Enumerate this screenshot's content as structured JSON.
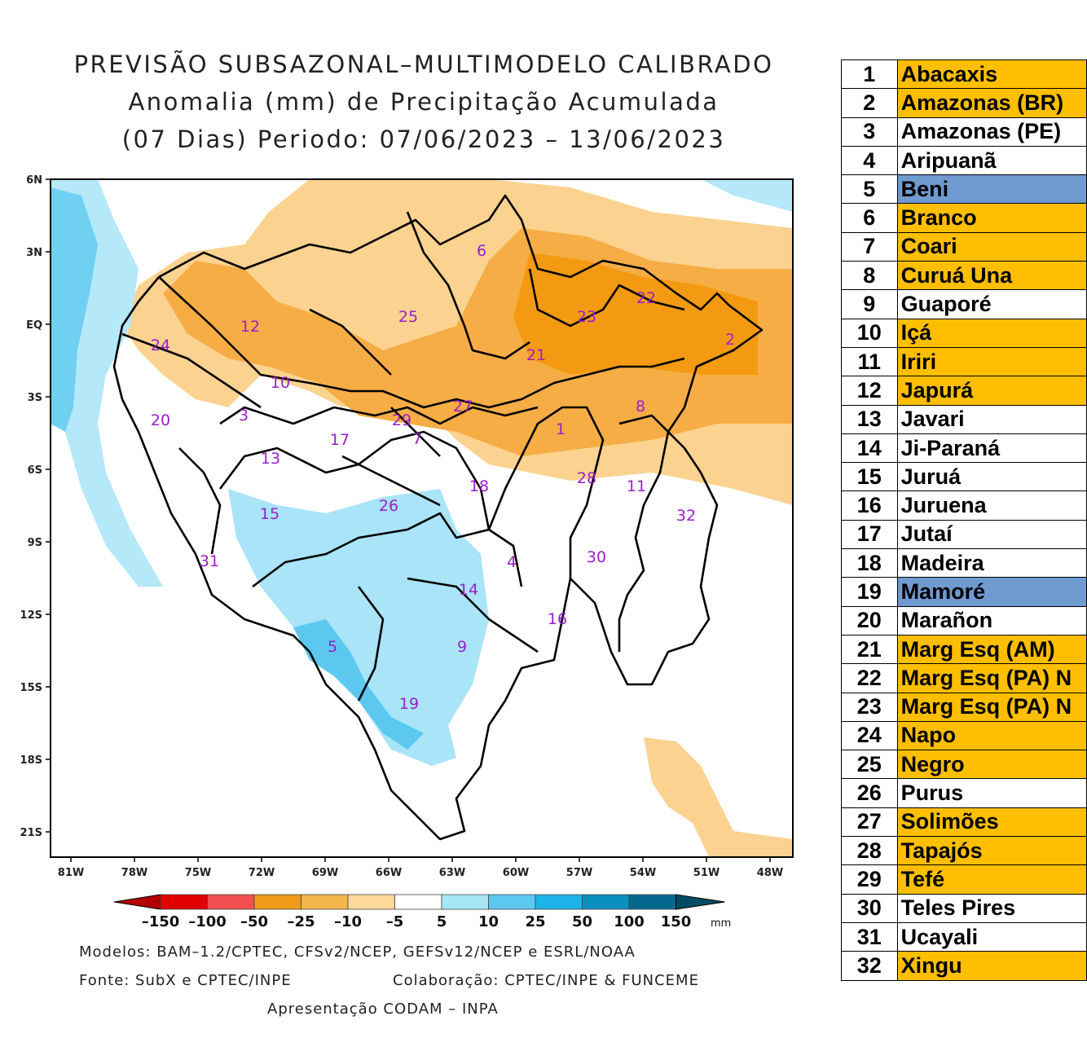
{
  "title": {
    "line1": "PREVISÃO SUBSAZONAL–MULTIMODELO CALIBRADO",
    "line2": "Anomalia (mm) de Precipitação Acumulada",
    "line3": "(07 Dias) Periodo: 07/06/2023 – 13/06/2023"
  },
  "map": {
    "lat_labels": [
      "6N",
      "3N",
      "EQ",
      "3S",
      "6S",
      "9S",
      "12S",
      "15S",
      "18S",
      "21S"
    ],
    "lon_labels": [
      "81W",
      "78W",
      "75W",
      "72W",
      "69W",
      "66W",
      "63W",
      "60W",
      "57W",
      "54W",
      "51W",
      "48W"
    ],
    "basin_labels": [
      "1",
      "2",
      "3",
      "4",
      "5",
      "6",
      "7",
      "8",
      "9",
      "10",
      "11",
      "12",
      "13",
      "14",
      "15",
      "16",
      "17",
      "18",
      "19",
      "20",
      "21",
      "22",
      "23",
      "24",
      "25",
      "26",
      "27",
      "28",
      "29",
      "30",
      "31",
      "32"
    ]
  },
  "colorbar": {
    "unit": "mm",
    "ticks": [
      "–150",
      "–100",
      "–50",
      "–25",
      "–10",
      "–5",
      "5",
      "10",
      "25",
      "50",
      "100",
      "150"
    ],
    "colors": [
      "#b30000",
      "#e00000",
      "#f25050",
      "#ef9b1a",
      "#f5b54d",
      "#fbd89a",
      "#ffffff",
      "#a7e6f7",
      "#5cc8f0",
      "#1bb3e8",
      "#0a8fbf",
      "#05698f",
      "#034b63"
    ]
  },
  "credits": {
    "models": "Modelos: BAM–1.2/CPTEC, CFSv2/NCEP, GEFSv12/NCEP e ESRL/NOAA",
    "source": "Fonte: SubX e CPTEC/INPE",
    "collab": "Colaboração: CPTEC/INPE & FUNCEME",
    "presentation": "Apresentação CODAM – INPA"
  },
  "legend": [
    {
      "num": "1",
      "name": "Abacaxis",
      "color": "#ffbf00"
    },
    {
      "num": "2",
      "name": "Amazonas (BR)",
      "color": "#ffbf00"
    },
    {
      "num": "3",
      "name": "Amazonas (PE)",
      "color": "#ffffff"
    },
    {
      "num": "4",
      "name": "Aripuanã",
      "color": "#ffffff"
    },
    {
      "num": "5",
      "name": "Beni",
      "color": "#6f9bd1"
    },
    {
      "num": "6",
      "name": "Branco",
      "color": "#ffbf00"
    },
    {
      "num": "7",
      "name": "Coari",
      "color": "#ffbf00"
    },
    {
      "num": "8",
      "name": "Curuá Una",
      "color": "#ffbf00"
    },
    {
      "num": "9",
      "name": "Guaporé",
      "color": "#ffffff"
    },
    {
      "num": "10",
      "name": "Içá",
      "color": "#ffbf00"
    },
    {
      "num": "11",
      "name": "Iriri",
      "color": "#ffbf00"
    },
    {
      "num": "12",
      "name": "Japurá",
      "color": "#ffbf00"
    },
    {
      "num": "13",
      "name": "Javari",
      "color": "#ffffff"
    },
    {
      "num": "14",
      "name": "Ji-Paraná",
      "color": "#ffffff"
    },
    {
      "num": "15",
      "name": "Juruá",
      "color": "#ffffff"
    },
    {
      "num": "16",
      "name": "Juruena",
      "color": "#ffffff"
    },
    {
      "num": "17",
      "name": "Jutaí",
      "color": "#ffffff"
    },
    {
      "num": "18",
      "name": "Madeira",
      "color": "#ffffff"
    },
    {
      "num": "19",
      "name": "Mamoré",
      "color": "#6f9bd1"
    },
    {
      "num": "20",
      "name": "Marañon",
      "color": "#ffffff"
    },
    {
      "num": "21",
      "name": "Marg Esq (AM)",
      "color": "#ffbf00"
    },
    {
      "num": "22",
      "name": "Marg Esq (PA) N",
      "color": "#ffbf00"
    },
    {
      "num": "23",
      "name": "Marg Esq (PA) N",
      "color": "#ffbf00"
    },
    {
      "num": "24",
      "name": "Napo",
      "color": "#ffbf00"
    },
    {
      "num": "25",
      "name": "Negro",
      "color": "#ffbf00"
    },
    {
      "num": "26",
      "name": "Purus",
      "color": "#ffffff"
    },
    {
      "num": "27",
      "name": "Solimões",
      "color": "#ffbf00"
    },
    {
      "num": "28",
      "name": "Tapajós",
      "color": "#ffbf00"
    },
    {
      "num": "29",
      "name": "Tefé",
      "color": "#ffbf00"
    },
    {
      "num": "30",
      "name": "Teles Pires",
      "color": "#ffffff"
    },
    {
      "num": "31",
      "name": "Ucayali",
      "color": "#ffffff"
    },
    {
      "num": "32",
      "name": "Xingu",
      "color": "#ffbf00"
    }
  ]
}
